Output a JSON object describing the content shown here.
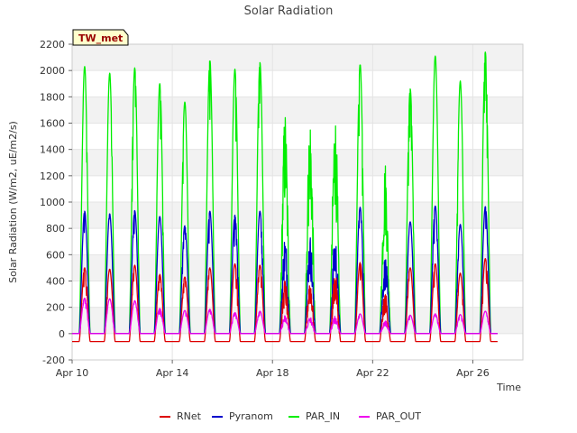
{
  "chart_data": {
    "type": "line",
    "title": "Solar Radiation",
    "station_label": "TW_met",
    "xlabel": "Time",
    "ylabel": "Solar Radiation (W/m2, uE/m2/s)",
    "ylim": [
      -200,
      2200
    ],
    "xlim_days": [
      10,
      28
    ],
    "yticks": [
      -200,
      0,
      200,
      400,
      600,
      800,
      1000,
      1200,
      1400,
      1600,
      1800,
      2000,
      2200
    ],
    "xticks": [
      {
        "day": 10,
        "label": "Apr 10"
      },
      {
        "day": 14,
        "label": "Apr 14"
      },
      {
        "day": 18,
        "label": "Apr 18"
      },
      {
        "day": 22,
        "label": "Apr 22"
      },
      {
        "day": 26,
        "label": "Apr 26"
      }
    ],
    "grid": true,
    "legend_position": "bottom",
    "days": [
      10,
      11,
      12,
      13,
      14,
      15,
      16,
      17,
      18,
      19,
      20,
      21,
      22,
      23,
      24,
      25,
      26
    ],
    "series": [
      {
        "name": "RNet",
        "color": "#dd0000",
        "night": -60,
        "peaks": [
          500,
          490,
          520,
          450,
          430,
          500,
          530,
          520,
          420,
          440,
          480,
          540,
          320,
          500,
          530,
          460,
          570
        ]
      },
      {
        "name": "Pyranom",
        "color": "#0000cc",
        "night": 0,
        "peaks": [
          930,
          910,
          935,
          890,
          820,
          930,
          900,
          930,
          760,
          760,
          760,
          960,
          600,
          850,
          970,
          830,
          965
        ]
      },
      {
        "name": "PAR_IN",
        "color": "#00ee00",
        "night": 0,
        "peaks": [
          2030,
          1980,
          2020,
          1900,
          1760,
          2080,
          2010,
          2060,
          1720,
          1700,
          1720,
          2050,
          1330,
          1860,
          2110,
          1920,
          2140
        ]
      },
      {
        "name": "PAR_OUT",
        "color": "#ee00ee",
        "night": 0,
        "peaks": [
          270,
          265,
          250,
          190,
          175,
          185,
          160,
          170,
          140,
          130,
          140,
          150,
          100,
          140,
          150,
          145,
          170
        ]
      }
    ]
  }
}
